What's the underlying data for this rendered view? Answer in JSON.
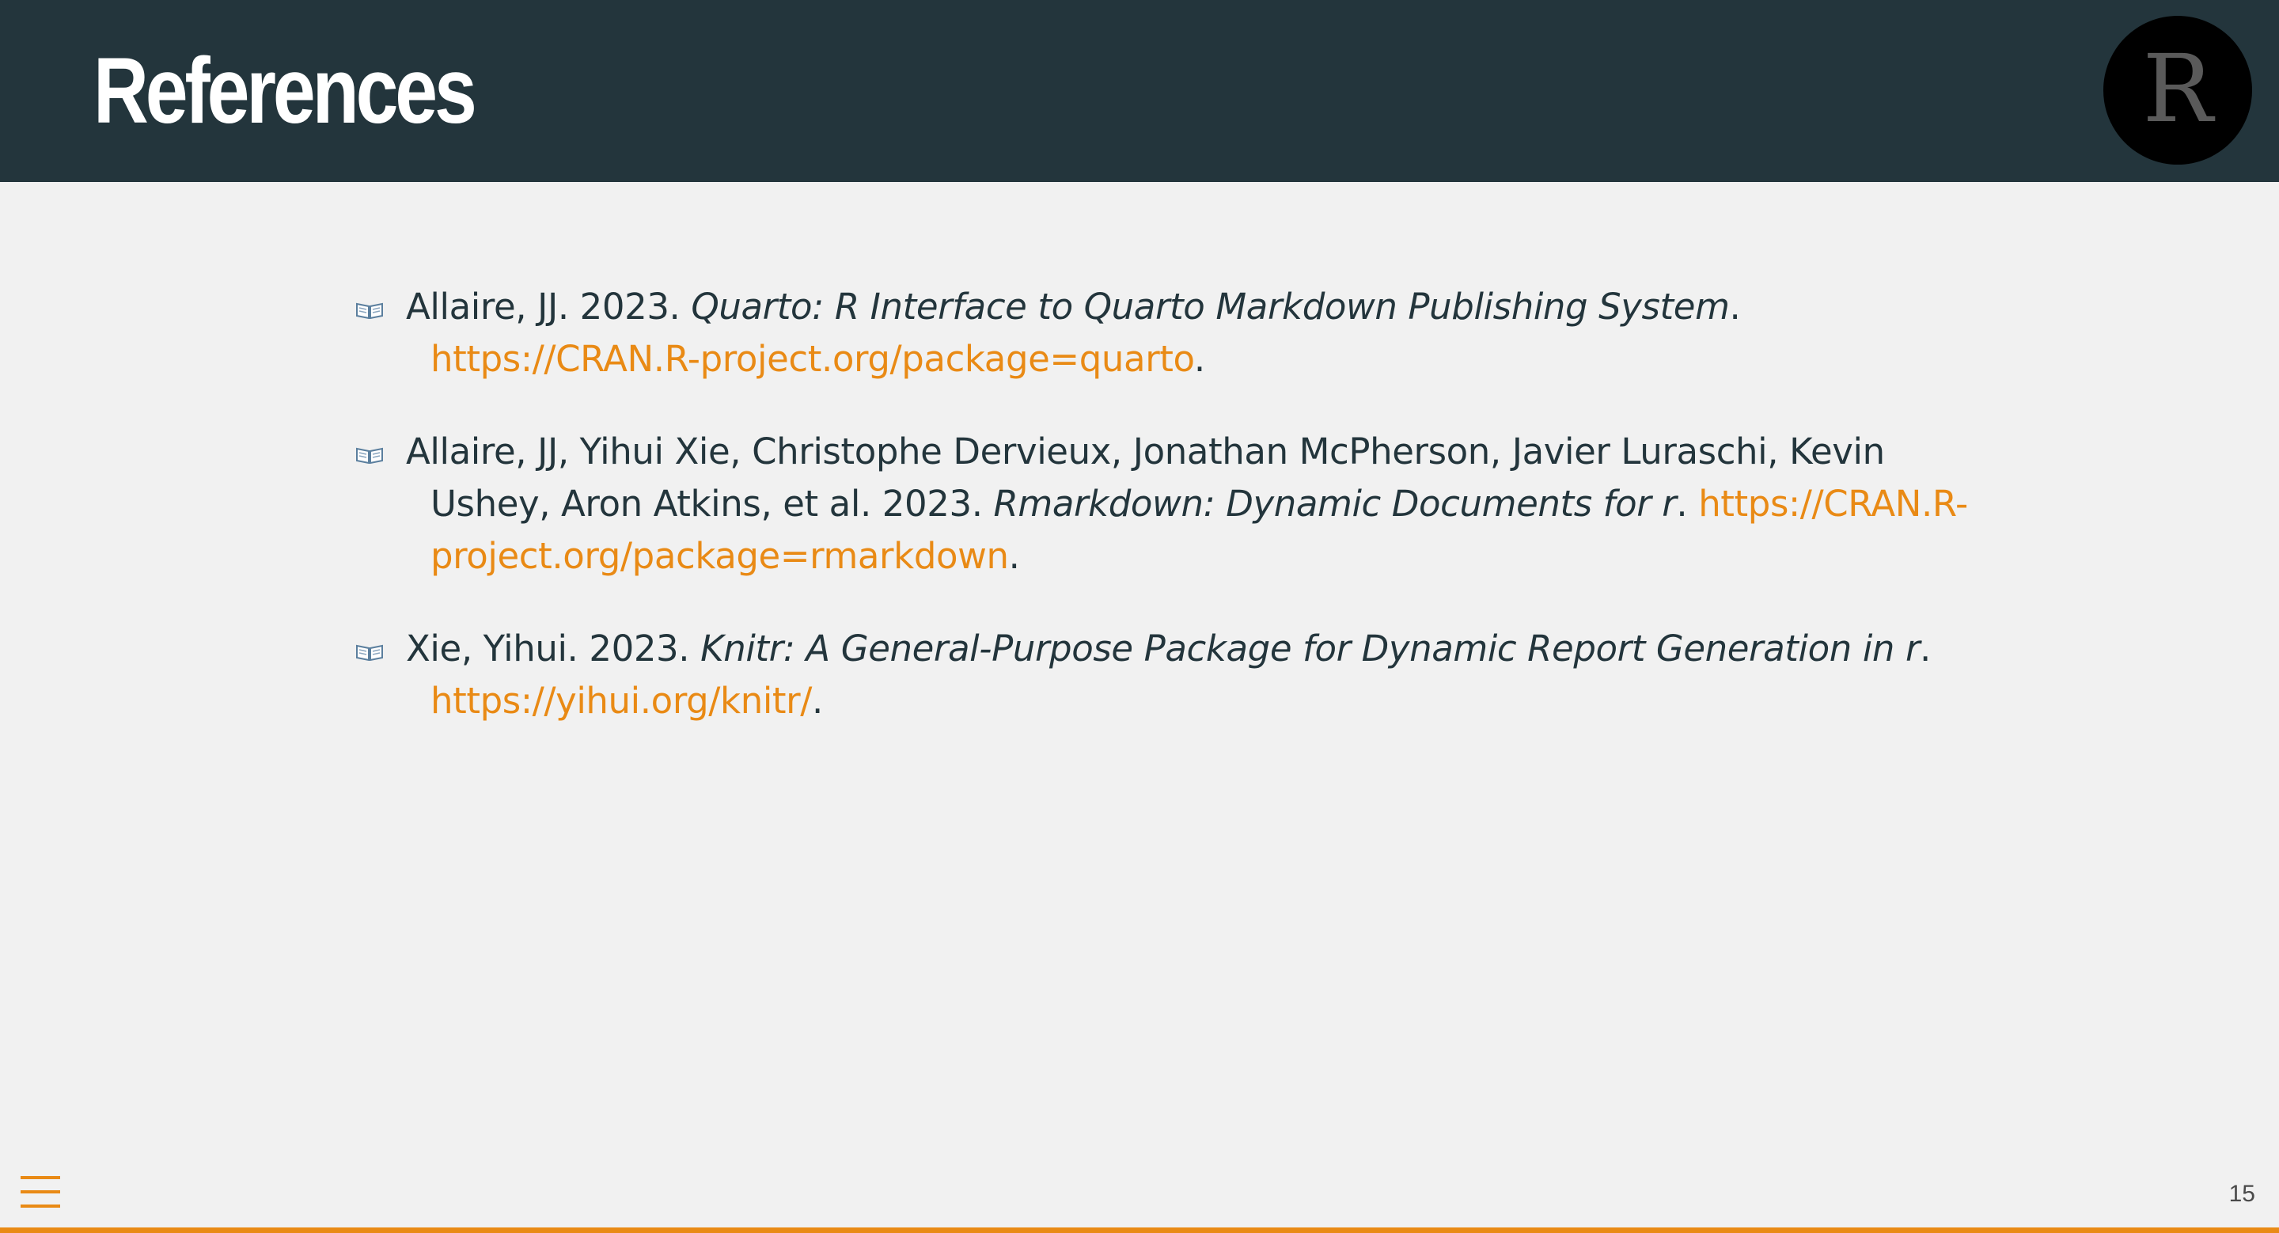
{
  "slide": {
    "title": "References",
    "number": "15",
    "progress": 1.0
  },
  "logo": {
    "letter": "R"
  },
  "references": [
    {
      "authors_year": "Allaire, JJ. 2023. ",
      "title": "Quarto: R Interface to Quarto Markdown Publishing System",
      "after_title": ". ",
      "url": "https://CRAN.R-project.org/package=quarto",
      "end": "."
    },
    {
      "authors_year": "Allaire, JJ, Yihui Xie, Christophe Dervieux, Jonathan McPherson, Javier Luraschi, Kevin Ushey, Aron Atkins, et al. 2023. ",
      "title": "Rmarkdown: Dynamic Documents for r",
      "after_title": ". ",
      "url": "https://CRAN.R-project.org/package=rmarkdown",
      "end": "."
    },
    {
      "authors_year": "Xie, Yihui. 2023. ",
      "title": "Knitr: A General-Purpose Package for Dynamic Report Generation in r",
      "after_title": ". ",
      "url": "https://yihui.org/knitr/",
      "end": "."
    }
  ],
  "icons": {
    "reference": "open-book-icon",
    "menu": "hamburger-menu-icon"
  },
  "colors": {
    "header_bg": "#23353c",
    "slide_bg": "#f1f1f1",
    "text": "#23353c",
    "accent": "#e98a15"
  }
}
